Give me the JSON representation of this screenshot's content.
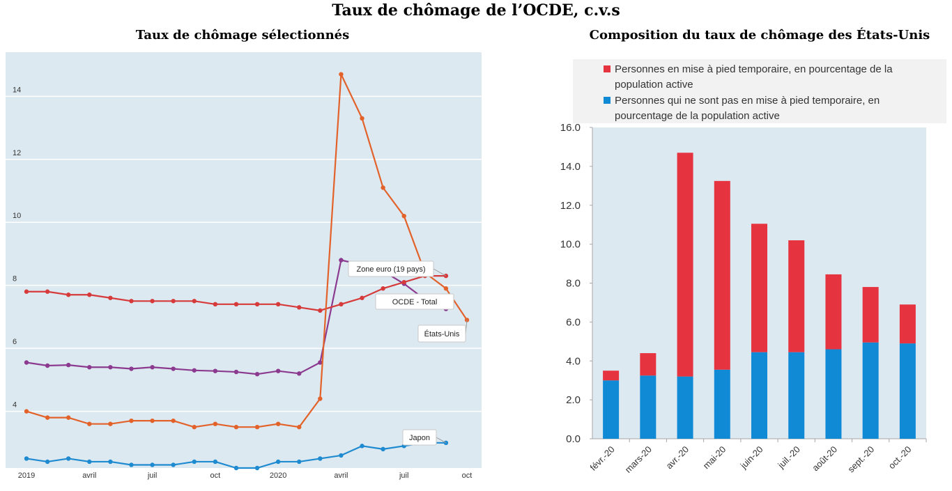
{
  "main_title": "Taux de chômage de l’OCDE, c.v.s",
  "colors": {
    "panel_bg": "#dde9f1",
    "euro": "#d63a3a",
    "oecd": "#8b3a8f",
    "us": "#e2622a",
    "japan": "#1e8ad0",
    "bar_temp": "#e63340",
    "bar_nontemp": "#118ad6",
    "legend_bg": "#f2f2f2"
  },
  "chart_data": [
    {
      "type": "line",
      "title": "Taux de chômage sélectionnés",
      "xlabel": "",
      "ylabel": "",
      "ylim": [
        2.2,
        15.4
      ],
      "grid": true,
      "x": [
        0,
        1,
        2,
        3,
        4,
        5,
        6,
        7,
        8,
        9,
        10,
        11,
        12,
        13,
        14,
        15,
        16,
        17,
        18,
        19,
        20,
        21
      ],
      "x_ticks": [
        {
          "x": 0,
          "label": "2019"
        },
        {
          "x": 3,
          "label": "avril"
        },
        {
          "x": 6,
          "label": "juil"
        },
        {
          "x": 9,
          "label": "oct"
        },
        {
          "x": 12,
          "label": "2020"
        },
        {
          "x": 15,
          "label": "avril"
        },
        {
          "x": 18,
          "label": "juil"
        },
        {
          "x": 21,
          "label": "oct"
        }
      ],
      "y_ticks": [
        4,
        6,
        8,
        10,
        12,
        14
      ],
      "series": [
        {
          "key": "oecd",
          "name": "OCDE - Total",
          "values": [
            5.55,
            5.45,
            5.47,
            5.4,
            5.4,
            5.35,
            5.4,
            5.35,
            5.3,
            5.28,
            5.25,
            5.18,
            5.28,
            5.2,
            5.55,
            8.8,
            8.65,
            8.45,
            8.05,
            7.55,
            7.25,
            null
          ]
        },
        {
          "key": "euro",
          "name": "Zone euro (19 pays)",
          "values": [
            7.8,
            7.8,
            7.7,
            7.7,
            7.6,
            7.5,
            7.5,
            7.5,
            7.5,
            7.4,
            7.4,
            7.4,
            7.4,
            7.3,
            7.2,
            7.4,
            7.6,
            7.9,
            8.1,
            8.3,
            8.3,
            null
          ]
        },
        {
          "key": "us",
          "name": "États-Unis",
          "values": [
            4.0,
            3.8,
            3.8,
            3.6,
            3.6,
            3.7,
            3.7,
            3.7,
            3.5,
            3.6,
            3.5,
            3.5,
            3.6,
            3.5,
            4.4,
            14.7,
            13.3,
            11.1,
            10.2,
            8.4,
            7.9,
            6.9
          ]
        },
        {
          "key": "japan",
          "name": "Japon",
          "values": [
            2.5,
            2.4,
            2.5,
            2.4,
            2.4,
            2.3,
            2.3,
            2.3,
            2.4,
            2.4,
            2.2,
            2.2,
            2.4,
            2.4,
            2.5,
            2.6,
            2.9,
            2.8,
            2.9,
            3.0,
            3.0,
            null
          ]
        }
      ]
    },
    {
      "type": "bar",
      "stacked": true,
      "title": "Composition du taux de chômage des États-Unis",
      "xlabel": "",
      "ylabel": "",
      "ylim": [
        0,
        16
      ],
      "y_ticks": [
        "0.0",
        "2.0",
        "4.0",
        "6.0",
        "8.0",
        "10.0",
        "12.0",
        "14.0",
        "16.0"
      ],
      "legend_position": "top",
      "categories": [
        "févr.-20",
        "mars-20",
        "avr.-20",
        "mai-20",
        "juin-20",
        "juil.-20",
        "août-20",
        "sept.-20",
        "oct.-20"
      ],
      "series": [
        {
          "key": "nontemp",
          "name": "Personnes qui ne sont pas en mise à pied temporaire, en pourcentage de la population active",
          "values": [
            3.0,
            3.25,
            3.2,
            3.55,
            4.45,
            4.45,
            4.6,
            4.95,
            4.9
          ]
        },
        {
          "key": "temp",
          "name": "Personnes en mise à pied temporaire, en pourcentage de la population active",
          "values": [
            0.5,
            1.15,
            11.5,
            9.7,
            6.6,
            5.75,
            3.85,
            2.85,
            2.0
          ]
        }
      ],
      "legend_lines": {
        "temp": [
          "Personnes en mise à pied temporaire, en pourcentage de la",
          "population active"
        ],
        "nontemp": [
          "Personnes qui ne sont pas en mise à pied temporaire, en",
          "pourcentage de la population active"
        ]
      }
    }
  ]
}
